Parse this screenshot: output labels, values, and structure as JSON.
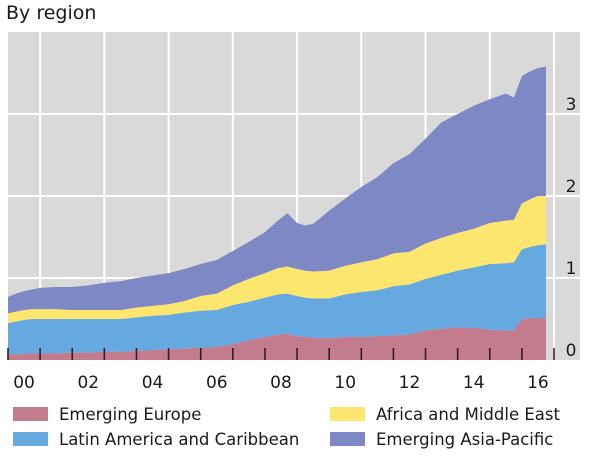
{
  "chart_data": {
    "type": "area",
    "stacked": true,
    "title": "By region",
    "xlabel": "",
    "ylabel": "",
    "ylim": [
      0,
      4
    ],
    "xlim": [
      2000,
      2017.2
    ],
    "grid": true,
    "y_axis_position": "right",
    "y_ticks": [
      0,
      1,
      2,
      3
    ],
    "y_tick_labels": [
      "0",
      "1",
      "2",
      "3"
    ],
    "x_ticks": [
      2000,
      2002,
      2004,
      2006,
      2008,
      2010,
      2012,
      2014,
      2016
    ],
    "x_tick_labels": [
      "00",
      "02",
      "04",
      "06",
      "08",
      "10",
      "12",
      "14",
      "16"
    ],
    "legend_position": "bottom",
    "x": [
      2000.0,
      2000.25,
      2000.5,
      2000.75,
      2001.0,
      2001.5,
      2002.0,
      2002.5,
      2003.0,
      2003.5,
      2004.0,
      2004.5,
      2005.0,
      2005.5,
      2006.0,
      2006.5,
      2007.0,
      2007.5,
      2008.0,
      2008.4,
      2008.7,
      2009.0,
      2009.25,
      2009.5,
      2010.0,
      2010.5,
      2011.0,
      2011.5,
      2012.0,
      2012.5,
      2013.0,
      2013.5,
      2014.0,
      2014.5,
      2015.0,
      2015.5,
      2015.75,
      2016.0,
      2016.25,
      2016.5,
      2016.75
    ],
    "series": [
      {
        "name": "Emerging Europe",
        "color": "#c27c8e",
        "values": [
          0.07,
          0.07,
          0.08,
          0.08,
          0.08,
          0.08,
          0.09,
          0.09,
          0.1,
          0.1,
          0.11,
          0.12,
          0.13,
          0.14,
          0.15,
          0.16,
          0.19,
          0.24,
          0.28,
          0.31,
          0.32,
          0.29,
          0.28,
          0.27,
          0.27,
          0.28,
          0.28,
          0.29,
          0.3,
          0.31,
          0.36,
          0.38,
          0.4,
          0.39,
          0.37,
          0.36,
          0.36,
          0.5,
          0.51,
          0.51,
          0.51
        ]
      },
      {
        "name": "Latin America and Caribbean",
        "color": "#66a9e0",
        "values": [
          0.38,
          0.4,
          0.41,
          0.42,
          0.42,
          0.42,
          0.41,
          0.41,
          0.4,
          0.4,
          0.41,
          0.42,
          0.42,
          0.44,
          0.45,
          0.45,
          0.48,
          0.47,
          0.48,
          0.49,
          0.49,
          0.49,
          0.48,
          0.48,
          0.48,
          0.52,
          0.55,
          0.56,
          0.6,
          0.61,
          0.63,
          0.66,
          0.69,
          0.74,
          0.8,
          0.82,
          0.83,
          0.85,
          0.87,
          0.89,
          0.9
        ]
      },
      {
        "name": "Africa and Middle East",
        "color": "#fde66e",
        "values": [
          0.12,
          0.12,
          0.12,
          0.12,
          0.12,
          0.12,
          0.11,
          0.11,
          0.11,
          0.11,
          0.12,
          0.12,
          0.13,
          0.14,
          0.18,
          0.2,
          0.24,
          0.28,
          0.3,
          0.32,
          0.33,
          0.33,
          0.33,
          0.33,
          0.34,
          0.35,
          0.36,
          0.38,
          0.4,
          0.4,
          0.43,
          0.45,
          0.46,
          0.47,
          0.5,
          0.52,
          0.52,
          0.56,
          0.58,
          0.6,
          0.59
        ]
      },
      {
        "name": "Emerging Asia-Pacific",
        "color": "#7d88c4",
        "values": [
          0.2,
          0.22,
          0.23,
          0.24,
          0.26,
          0.27,
          0.28,
          0.3,
          0.33,
          0.35,
          0.36,
          0.37,
          0.38,
          0.39,
          0.39,
          0.41,
          0.42,
          0.45,
          0.5,
          0.58,
          0.65,
          0.56,
          0.55,
          0.58,
          0.73,
          0.82,
          0.92,
          1.0,
          1.1,
          1.19,
          1.28,
          1.41,
          1.45,
          1.5,
          1.51,
          1.55,
          1.49,
          1.55,
          1.56,
          1.56,
          1.58
        ]
      }
    ]
  },
  "legend": {
    "items": [
      {
        "label": "Emerging Europe",
        "color": "#c27c8e"
      },
      {
        "label": "Africa and Middle East",
        "color": "#fde66e"
      },
      {
        "label": "Latin America and Caribbean",
        "color": "#66a9e0"
      },
      {
        "label": "Emerging Asia-Pacific",
        "color": "#7d88c4"
      }
    ]
  },
  "colors": {
    "plot_background": "#d9d9d9",
    "gridline": "#ffffff",
    "tick_mark": "#3a1a22",
    "text": "#1a1a1a"
  }
}
